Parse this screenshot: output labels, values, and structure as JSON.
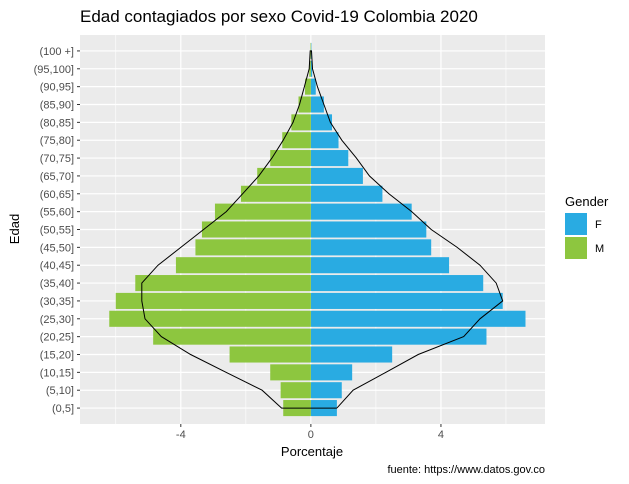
{
  "chart_data": {
    "type": "bar",
    "orientation": "horizontal",
    "title": "Edad contagiados por sexo Covid-19 Colombia 2020",
    "xlabel": "Porcentaje",
    "ylabel": "Edad",
    "caption": "fuente: https://www.datos.gov.co",
    "categories": [
      "(0,5]",
      "(5,10]",
      "(10,15]",
      "(15,20]",
      "(20,25]",
      "(25,30]",
      "(30,35]",
      "(35,40]",
      "(40,45]",
      "(45,50]",
      "(50,55]",
      "(55,60]",
      "(60,65]",
      "(65,70]",
      "(70,75]",
      "(75,80]",
      "(80,85]",
      "(85,90]",
      "(90,95]",
      "(95,100]",
      "(100 +]"
    ],
    "x_ticks": [
      -4,
      0,
      4
    ],
    "x_tick_labels": [
      "-4",
      "0",
      "4"
    ],
    "xlim": [
      -7.1,
      7.2
    ],
    "legend": {
      "title": "Gender",
      "position": "right"
    },
    "grid": true,
    "series": [
      {
        "name": "F",
        "color": "#29abe2",
        "values": [
          0.8,
          0.95,
          1.27,
          2.5,
          5.4,
          6.6,
          5.9,
          5.3,
          4.25,
          3.7,
          3.55,
          3.1,
          2.2,
          1.6,
          1.15,
          0.85,
          0.65,
          0.4,
          0.15,
          0.04,
          0.01
        ]
      },
      {
        "name": "M",
        "color": "#8dc63f",
        "values": [
          -0.85,
          -0.93,
          -1.25,
          -2.5,
          -4.85,
          -6.2,
          -6.0,
          -5.4,
          -4.15,
          -3.55,
          -3.35,
          -2.95,
          -2.15,
          -1.65,
          -1.25,
          -0.88,
          -0.6,
          -0.38,
          -0.18,
          -0.05,
          -0.01
        ]
      }
    ],
    "outline": {
      "color": "#000000",
      "right": [
        0.8,
        1.3,
        2.3,
        3.3,
        4.7,
        5.2,
        5.9,
        5.7,
        5.2,
        4.5,
        3.7,
        3.1,
        2.4,
        1.8,
        1.4,
        0.95,
        0.6,
        0.4,
        0.2,
        0.05,
        0.02
      ],
      "left": [
        -0.9,
        -1.5,
        -2.6,
        -3.7,
        -4.6,
        -5.1,
        -5.2,
        -5.2,
        -4.7,
        -4.0,
        -3.3,
        -2.6,
        -2.1,
        -1.6,
        -1.2,
        -0.85,
        -0.55,
        -0.35,
        -0.2,
        -0.05,
        -0.02
      ]
    }
  }
}
